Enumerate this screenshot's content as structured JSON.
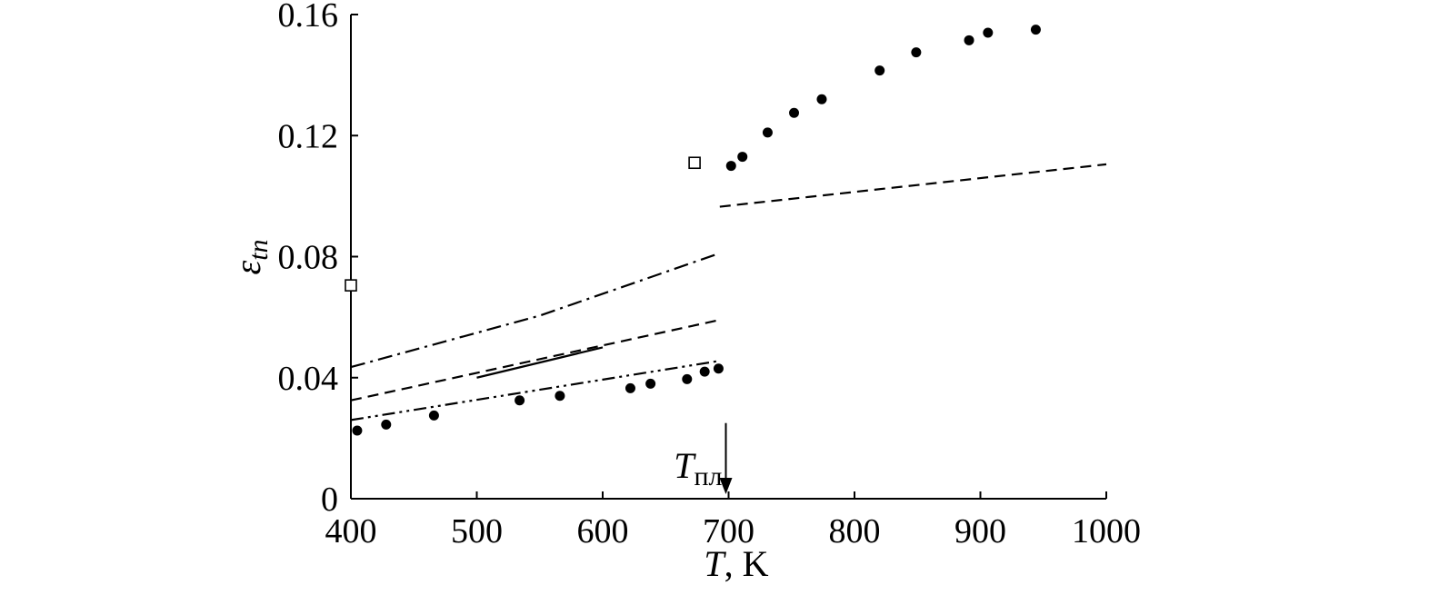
{
  "chart_data": {
    "type": "scatter",
    "title": "",
    "xlabel": {
      "symbol": "T",
      "rest": ", K"
    },
    "ylabel": {
      "symbol": "ε",
      "subscript": "tn"
    },
    "xlim": [
      400,
      1000
    ],
    "ylim": [
      0,
      0.16
    ],
    "x_ticks": [
      {
        "value": 400,
        "label": "400"
      },
      {
        "value": 500,
        "label": "500"
      },
      {
        "value": 600,
        "label": "600"
      },
      {
        "value": 700,
        "label": "700"
      },
      {
        "value": 800,
        "label": "800"
      },
      {
        "value": 900,
        "label": "900"
      },
      {
        "value": 1000,
        "label": "1000"
      }
    ],
    "y_ticks": [
      {
        "value": 0,
        "label": "0"
      },
      {
        "value": 0.04,
        "label": "0.04"
      },
      {
        "value": 0.08,
        "label": "0.08"
      },
      {
        "value": 0.12,
        "label": "0.12"
      },
      {
        "value": 0.16,
        "label": "0.16"
      }
    ],
    "grid": false,
    "series": [
      {
        "kind": "points",
        "marker": "filled-circle",
        "x": [
          405,
          428,
          466,
          534,
          566,
          622,
          638,
          667,
          681,
          692,
          702,
          711,
          731,
          752,
          774,
          820,
          849,
          891,
          906,
          944
        ],
        "y": [
          0.0225,
          0.0245,
          0.0275,
          0.0325,
          0.034,
          0.0365,
          0.038,
          0.0395,
          0.042,
          0.043,
          0.11,
          0.113,
          0.121,
          0.1275,
          0.132,
          0.1415,
          0.1475,
          0.1515,
          0.154,
          0.155
        ]
      },
      {
        "kind": "points",
        "marker": "open-square",
        "x": [
          400,
          673
        ],
        "y": [
          0.0705,
          0.111
        ]
      },
      {
        "kind": "line",
        "style": "dash-dot",
        "x": [
          400,
          550,
          692
        ],
        "y": [
          0.0435,
          0.0605,
          0.081
        ]
      },
      {
        "kind": "line",
        "style": "dashed",
        "x": [
          400,
          692
        ],
        "y": [
          0.0325,
          0.059
        ]
      },
      {
        "kind": "line",
        "style": "solid",
        "x": [
          500,
          600
        ],
        "y": [
          0.04,
          0.05
        ]
      },
      {
        "kind": "line",
        "style": "dash-dot-dot",
        "x": [
          400,
          692
        ],
        "y": [
          0.026,
          0.0455
        ]
      },
      {
        "kind": "line",
        "style": "dashed",
        "x": [
          693,
          1000
        ],
        "y": [
          0.0965,
          0.1105
        ]
      }
    ],
    "annotations": [
      {
        "symbol": "T",
        "subscript": "пл",
        "x": 700,
        "arrow_from_y": 0.025,
        "arrow_to_y": 0.0015
      }
    ]
  }
}
